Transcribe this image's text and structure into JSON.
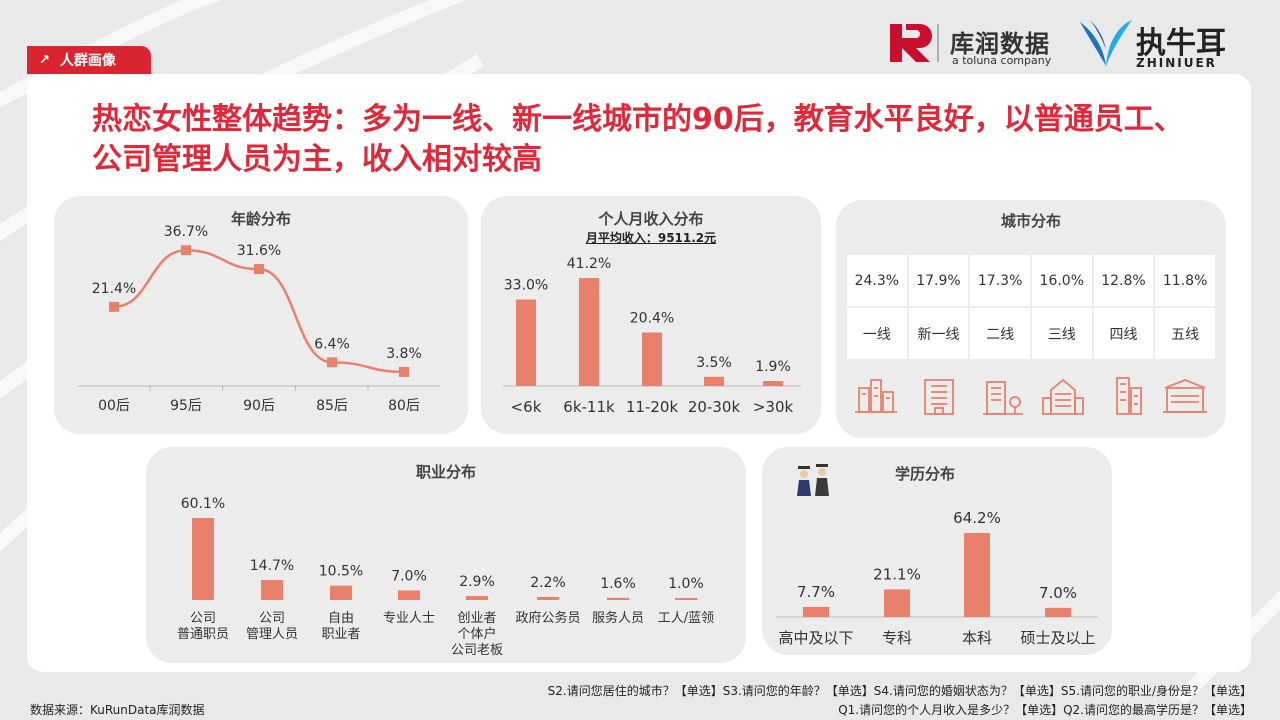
{
  "tag": {
    "label": "人群画像"
  },
  "brand": {
    "logo1_cn": "库润数据",
    "logo1_en": "a toluna company",
    "logo2_cn": "执牛耳",
    "logo2_en": "ZHINIUER"
  },
  "headline": "热恋女性整体趋势：多为一线、新一线城市的90后，教育水平良好，以普通员工、公司管理人员为主，收入相对较高",
  "age": {
    "title": "年龄分布"
  },
  "income": {
    "title": "个人月收入分布",
    "subtitle": "月平均收入：9511.2元"
  },
  "city": {
    "title": "城市分布",
    "values": [
      "24.3%",
      "17.9%",
      "17.3%",
      "16.0%",
      "12.8%",
      "11.8%"
    ],
    "labels": [
      "一线",
      "新一线",
      "二线",
      "三线",
      "四线",
      "五线"
    ]
  },
  "job": {
    "title": "职业分布"
  },
  "edu": {
    "title": "学历分布"
  },
  "footer": {
    "line1": "S2.请问您居住的城市？【单选】S3.请问您的年龄？【单选】S4.请问您的婚姻状态为？【单选】S5.请问您的职业/身份是？【单选】",
    "line2": "Q1.请问您的个人月收入是多少？【单选】Q2.请问您的最高学历是？【单选】",
    "source": "数据来源：KuRunData库润数据"
  },
  "colors": {
    "accent": "#e0283a",
    "bar": "#e8806c",
    "tag": "#d9252f"
  },
  "chart_data": [
    {
      "id": "age",
      "type": "line",
      "title": "年龄分布",
      "categories": [
        "00后",
        "95后",
        "90后",
        "85后",
        "80后"
      ],
      "values": [
        21.4,
        36.7,
        31.6,
        6.4,
        3.8
      ],
      "labels": [
        "21.4%",
        "36.7%",
        "31.6%",
        "6.4%",
        "3.8%"
      ],
      "ylim": [
        0,
        40
      ]
    },
    {
      "id": "income",
      "type": "bar",
      "title": "个人月收入分布",
      "categories": [
        "<6k",
        "6k-11k",
        "11-20k",
        "20-30k",
        ">30k"
      ],
      "values": [
        33.0,
        41.2,
        20.4,
        3.5,
        1.9
      ],
      "labels": [
        "33.0%",
        "41.2%",
        "20.4%",
        "3.5%",
        "1.9%"
      ]
    },
    {
      "id": "job",
      "type": "bar",
      "title": "职业分布",
      "categories": [
        [
          "公司",
          "普通职员"
        ],
        [
          "公司",
          "管理人员"
        ],
        [
          "自由",
          "职业者"
        ],
        [
          "专业人士"
        ],
        [
          "创业者",
          "个体户",
          "公司老板"
        ],
        [
          "政府公务员"
        ],
        [
          "服务人员"
        ],
        [
          "工人/蓝领"
        ]
      ],
      "values": [
        60.1,
        14.7,
        10.5,
        7.0,
        2.9,
        2.2,
        1.6,
        1.0
      ],
      "labels": [
        "60.1%",
        "14.7%",
        "10.5%",
        "7.0%",
        "2.9%",
        "2.2%",
        "1.6%",
        "1.0%"
      ]
    },
    {
      "id": "edu",
      "type": "bar",
      "title": "学历分布",
      "categories": [
        "高中及以下",
        "专科",
        "本科",
        "硕士及以上"
      ],
      "values": [
        7.7,
        21.1,
        64.2,
        7.0
      ],
      "labels": [
        "7.7%",
        "21.1%",
        "64.2%",
        "7.0%"
      ]
    },
    {
      "id": "city",
      "type": "table",
      "title": "城市分布",
      "categories": [
        "一线",
        "新一线",
        "二线",
        "三线",
        "四线",
        "五线"
      ],
      "values": [
        24.3,
        17.9,
        17.3,
        16.0,
        12.8,
        11.8
      ]
    }
  ]
}
